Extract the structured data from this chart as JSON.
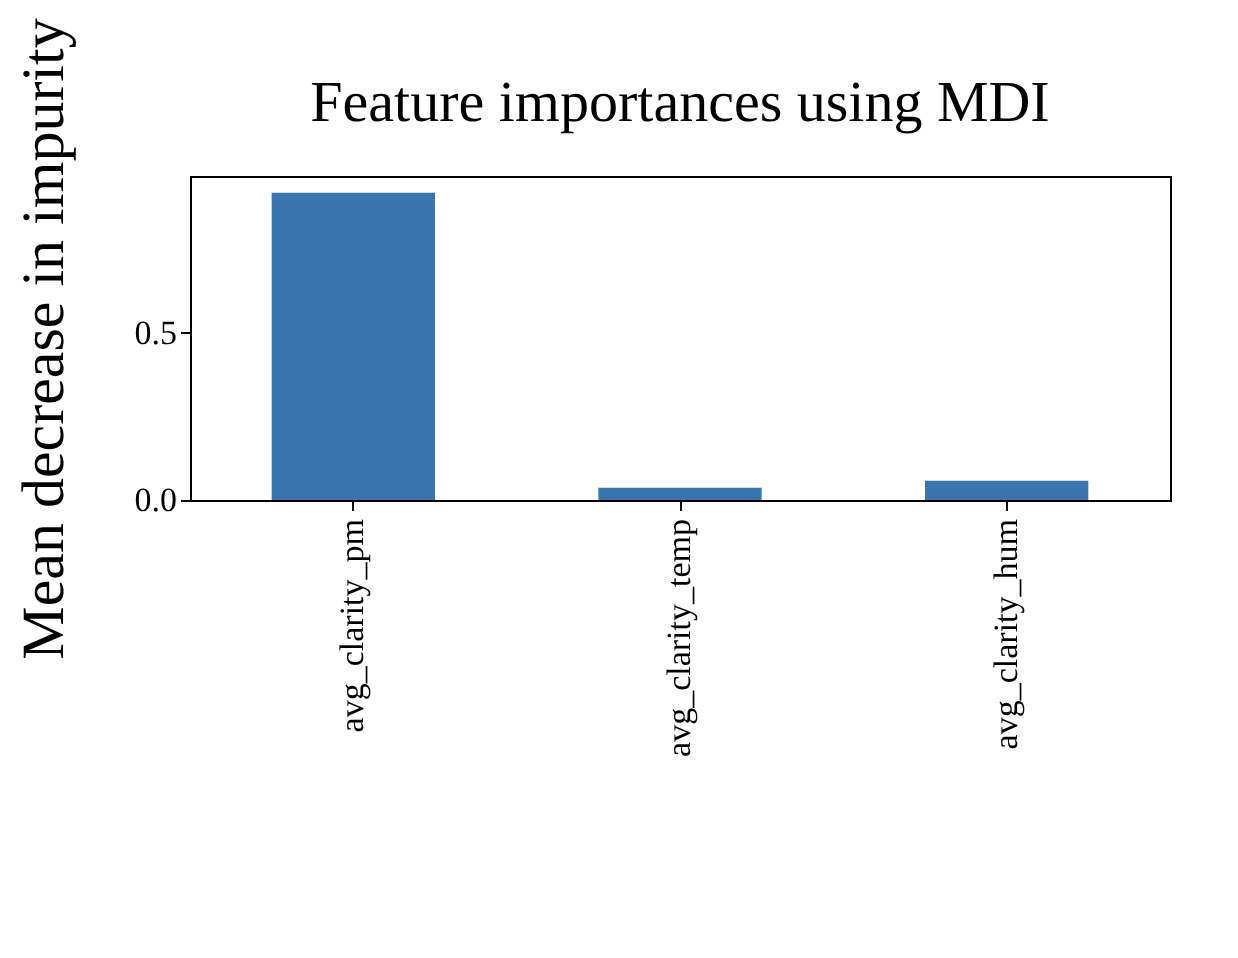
{
  "chart_data": {
    "type": "bar",
    "title": "Feature importances using MDI",
    "ylabel": "Mean decrease in impurity",
    "categories": [
      "avg_clarity_pm",
      "avg_clarity_temp",
      "avg_clarity_hum"
    ],
    "values": [
      0.92,
      0.037,
      0.058
    ],
    "color": "#3a75b0",
    "ylim": [
      0,
      0.97
    ],
    "yticks": [
      {
        "value": 0,
        "label": "0.0"
      },
      {
        "value": 0.5,
        "label": "0.5"
      }
    ],
    "grid": false
  }
}
